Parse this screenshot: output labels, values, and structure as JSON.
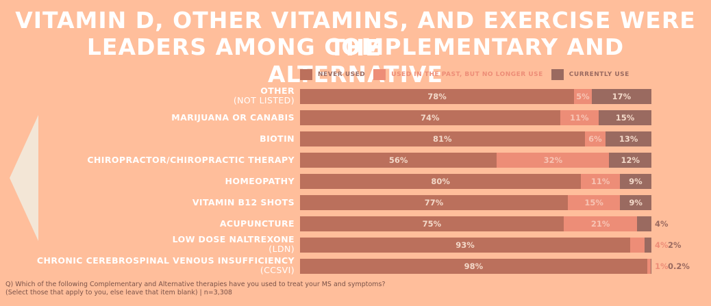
{
  "title_line1": "Vitamin D, other vitamins, and exercise were the",
  "title_line2": "leaders among complementary and alternative",
  "legend": {
    "never": "NEVER USED",
    "past": "USED IN THE PAST, BUT NO LONGER USE",
    "current": "CURRENTLY USE"
  },
  "colors": {
    "never": "#BB705C",
    "past": "#ED8D77",
    "current": "#9A6A60",
    "label": "#ffffff"
  },
  "footnote_line1": "Q) Which of the following Complementary and Alternative therapies have you used to treat your MS and symptoms?",
  "footnote_line2": "(Select those that apply to you, else leave that item blank) | n=3,308",
  "chart_data": {
    "type": "bar",
    "orientation": "horizontal-stacked",
    "series_names": [
      "NEVER USED",
      "USED IN THE PAST, BUT NO LONGER USE",
      "CURRENTLY USE"
    ],
    "rows": [
      {
        "label": "OTHER",
        "sub": "(NOT LISTED)",
        "never": 78,
        "past": 5,
        "current": 17,
        "labels": [
          "78%",
          "5%",
          "17%"
        ]
      },
      {
        "label": "MARIJUANA OR CANABIS",
        "sub": "",
        "never": 74,
        "past": 11,
        "current": 15,
        "labels": [
          "74%",
          "11%",
          "15%"
        ]
      },
      {
        "label": "BIOTIN",
        "sub": "",
        "never": 81,
        "past": 6,
        "current": 13,
        "labels": [
          "81%",
          "6%",
          "13%"
        ]
      },
      {
        "label": "CHIROPRACTOR/CHIROPRACTIC THERAPY",
        "sub": "",
        "never": 56,
        "past": 32,
        "current": 12,
        "labels": [
          "56%",
          "32%",
          "12%"
        ]
      },
      {
        "label": "HOMEOPATHY",
        "sub": "",
        "never": 80,
        "past": 11,
        "current": 9,
        "labels": [
          "80%",
          "11%",
          "9%"
        ]
      },
      {
        "label": "VITAMIN B12 SHOTS",
        "sub": "",
        "never": 77,
        "past": 15,
        "current": 9,
        "labels": [
          "77%",
          "15%",
          "9%"
        ]
      },
      {
        "label": "ACUPUNCTURE",
        "sub": "",
        "never": 75,
        "past": 21,
        "current": 4,
        "labels": [
          "75%",
          "21%",
          "4%"
        ]
      },
      {
        "label": "LOW DOSE NALTREXONE",
        "sub": "(LDN)",
        "never": 93,
        "past": 4,
        "current": 2,
        "labels": [
          "93%",
          "4%",
          "2%"
        ]
      },
      {
        "label": "CHRONIC CEREBROSPINAL VENOUS INSUFFICIENCY",
        "sub": "(CCSVI)",
        "never": 98,
        "past": 1,
        "current": 0.2,
        "labels": [
          "98%",
          "1%",
          "0.2%"
        ]
      }
    ]
  }
}
